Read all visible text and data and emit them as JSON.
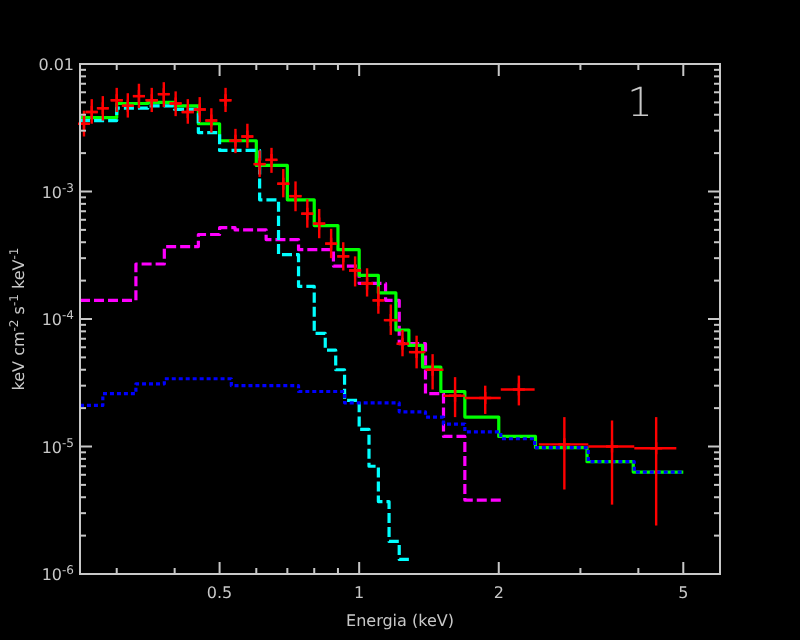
{
  "chart_data": {
    "type": "step",
    "xlabel": "Energia (keV)",
    "ylabel": "keV cm$^{-2}$ s$^{-1}$ keV$^{-1}$",
    "annotations": [
      "1"
    ],
    "log": "xy",
    "grid": false,
    "xlim": [
      0.25,
      6
    ],
    "ylim": [
      1e-06,
      0.01
    ],
    "xticks": [
      {
        "value": 0.3,
        "label": null
      },
      {
        "value": 0.4,
        "label": null
      },
      0.5,
      {
        "value": 0.6,
        "label": null
      },
      {
        "value": 0.7,
        "label": null
      },
      {
        "value": 0.8,
        "label": null
      },
      {
        "value": 0.9,
        "label": null
      },
      1,
      2,
      {
        "value": 3,
        "label": null
      },
      {
        "value": 4,
        "label": null
      },
      5
    ],
    "yticks": [
      {
        "value": 1e-06,
        "label": "10$^{-6}$"
      },
      {
        "value": 2e-06,
        "label": null
      },
      {
        "value": 3e-06,
        "label": null
      },
      {
        "value": 4e-06,
        "label": null
      },
      {
        "value": 5e-06,
        "label": null
      },
      {
        "value": 6e-06,
        "label": null
      },
      {
        "value": 7e-06,
        "label": null
      },
      {
        "value": 8e-06,
        "label": null
      },
      {
        "value": 9e-06,
        "label": null
      },
      {
        "value": 1e-05,
        "label": "10$^{-5}$"
      },
      {
        "value": 2e-05,
        "label": null
      },
      {
        "value": 3e-05,
        "label": null
      },
      {
        "value": 4e-05,
        "label": null
      },
      {
        "value": 5e-05,
        "label": null
      },
      {
        "value": 6e-05,
        "label": null
      },
      {
        "value": 7e-05,
        "label": null
      },
      {
        "value": 8e-05,
        "label": null
      },
      {
        "value": 9e-05,
        "label": null
      },
      {
        "value": 0.0001,
        "label": "10$^{-4}$"
      },
      {
        "value": 0.0002,
        "label": null
      },
      {
        "value": 0.0003,
        "label": null
      },
      {
        "value": 0.0004,
        "label": null
      },
      {
        "value": 0.0005,
        "label": null
      },
      {
        "value": 0.0006,
        "label": null
      },
      {
        "value": 0.0007,
        "label": null
      },
      {
        "value": 0.0008,
        "label": null
      },
      {
        "value": 0.0009,
        "label": null
      },
      {
        "value": 0.001,
        "label": "10$^{-3}$"
      },
      {
        "value": 0.002,
        "label": null
      },
      {
        "value": 0.003,
        "label": null
      },
      {
        "value": 0.004,
        "label": null
      },
      {
        "value": 0.005,
        "label": null
      },
      {
        "value": 0.006,
        "label": null
      },
      {
        "value": 0.007,
        "label": null
      },
      {
        "value": 0.008,
        "label": null
      },
      {
        "value": 0.009,
        "label": null
      },
      0.01
    ],
    "series": [
      {
        "color": "#ff00ff",
        "line_style": "dashed",
        "x": [
          0.25,
          0.33,
          0.38,
          0.45,
          0.5,
          0.54,
          0.63,
          0.74,
          0.88,
          1.0,
          1.14,
          1.22,
          1.39,
          1.52,
          1.69,
          2.02
        ],
        "values": [
          0.00014,
          0.00027,
          0.00037,
          0.00046,
          0.00052,
          0.0005,
          0.00042,
          0.00035,
          0.00026,
          0.00019,
          0.00014,
          6.4e-05,
          2.6e-05,
          1.2e-05,
          3.8e-06,
          3.8e-06
        ]
      },
      {
        "color": "#0000ff",
        "line_style": "dotted",
        "x": [
          0.25,
          0.28,
          0.33,
          0.38,
          0.45,
          0.53,
          0.74,
          0.93,
          1.22,
          1.39,
          1.52,
          1.69,
          2.02,
          2.39,
          3.12,
          3.92,
          4.96
        ],
        "values": [
          2.1e-05,
          2.6e-05,
          3.1e-05,
          3.4e-05,
          3.4e-05,
          3e-05,
          2.7e-05,
          2.2e-05,
          1.87e-05,
          1.7e-05,
          1.5e-05,
          1.3e-05,
          1.15e-05,
          9.8e-06,
          7.6e-06,
          6.3e-06,
          6.3e-06
        ]
      },
      {
        "color": "#00ff00",
        "line_style": "solid",
        "x": [
          0.25,
          0.3,
          0.35,
          0.4,
          0.45,
          0.5,
          0.6,
          0.7,
          0.8,
          0.9,
          1.0,
          1.1,
          1.2,
          1.28,
          1.37,
          1.5,
          1.69,
          2.0,
          2.4,
          3.1,
          3.9,
          5.0
        ],
        "values": [
          0.0038,
          0.0049,
          0.005,
          0.0047,
          0.0034,
          0.0025,
          0.0016,
          0.00086,
          0.00054,
          0.00035,
          0.00022,
          0.00016,
          8.2e-05,
          6.2e-05,
          4.2e-05,
          2.7e-05,
          1.7e-05,
          1.2e-05,
          9.8e-06,
          7.6e-06,
          6.3e-06,
          6.3e-06
        ]
      },
      {
        "color": "#00ffff",
        "line_style": "dashed",
        "x": [
          0.25,
          0.3,
          0.35,
          0.4,
          0.45,
          0.5,
          0.61,
          0.67,
          0.74,
          0.8,
          0.845,
          0.89,
          0.93,
          1.0,
          1.05,
          1.1,
          1.16,
          1.22,
          1.28
        ],
        "values": [
          0.0036,
          0.0045,
          0.0047,
          0.0044,
          0.0029,
          0.0021,
          0.00086,
          0.00032,
          0.00018,
          7.7e-05,
          5.7e-05,
          4e-05,
          2.3e-05,
          1.36e-05,
          7e-06,
          3.7e-06,
          1.8e-06,
          1.3e-06,
          1.3e-06
        ]
      },
      {
        "type": "scatter",
        "color": "#ff0000",
        "marker": "cross",
        "x": [
          0.255,
          0.265,
          0.28,
          0.3,
          0.317,
          0.335,
          0.357,
          0.379,
          0.402,
          0.427,
          0.453,
          0.48,
          0.515,
          0.541,
          0.574,
          0.61,
          0.647,
          0.686,
          0.729,
          0.773,
          0.82,
          0.87,
          0.924,
          0.98,
          1.04,
          1.1,
          1.17,
          1.24,
          1.33,
          1.44,
          1.61,
          1.87,
          2.21,
          2.77,
          3.51,
          4.37
        ],
        "values": [
          0.0034,
          0.0042,
          0.0045,
          0.0052,
          0.0047,
          0.0056,
          0.0052,
          0.0058,
          0.0049,
          0.0042,
          0.0044,
          0.0036,
          0.0052,
          0.0025,
          0.0027,
          0.00164,
          0.00177,
          0.00115,
          0.00092,
          0.00067,
          0.00056,
          0.00039,
          0.00031,
          0.00024,
          0.00019,
          0.00014,
          9.8e-05,
          6.4e-05,
          5.5e-05,
          4e-05,
          2.5e-05,
          2.4e-05,
          2.8e-05,
          1.04e-05,
          1e-05,
          9.7e-06
        ],
        "errors": [
          [
            0.0027,
            0.0043
          ],
          [
            0.0034,
            0.0053
          ],
          [
            0.0036,
            0.0056
          ],
          [
            0.0042,
            0.0065
          ],
          [
            0.0038,
            0.0059
          ],
          [
            0.0045,
            0.007
          ],
          [
            0.0042,
            0.0065
          ],
          [
            0.0046,
            0.0072
          ],
          [
            0.0039,
            0.0061
          ],
          [
            0.0034,
            0.0053
          ],
          [
            0.0035,
            0.0055
          ],
          [
            0.0029,
            0.0045
          ],
          [
            0.0042,
            0.0065
          ],
          [
            0.002,
            0.0031
          ],
          [
            0.0022,
            0.0034
          ],
          [
            0.0013,
            0.0021
          ],
          [
            0.0014,
            0.0022
          ],
          [
            0.0009,
            0.0015
          ],
          [
            0.0007,
            0.0012
          ],
          [
            0.00052,
            0.00087
          ],
          [
            0.00043,
            0.00073
          ],
          [
            0.0003,
            0.00051
          ],
          [
            0.00024,
            0.0004
          ],
          [
            0.00018,
            0.00031
          ],
          [
            0.00015,
            0.00025
          ],
          [
            0.00011,
            0.00018
          ],
          [
            7.5e-05,
            0.00013
          ],
          [
            5.1e-05,
            8.2e-05
          ],
          [
            4.1e-05,
            7.4e-05
          ],
          [
            2.8e-05,
            5.3e-05
          ],
          [
            1.7e-05,
            3.5e-05
          ],
          [
            1.8e-05,
            3e-05
          ],
          [
            2.1e-05,
            3.6e-05
          ],
          [
            4.6e-06,
            1.7e-05
          ],
          [
            3.5e-06,
            1.6e-05
          ],
          [
            2.4e-06,
            1.7e-05
          ]
        ],
        "xerrors": [
          [
            0.251,
            0.26
          ],
          [
            0.257,
            0.273
          ],
          [
            0.273,
            0.288
          ],
          [
            0.291,
            0.309
          ],
          [
            0.308,
            0.326
          ],
          [
            0.325,
            0.345
          ],
          [
            0.346,
            0.368
          ],
          [
            0.368,
            0.39
          ],
          [
            0.39,
            0.414
          ],
          [
            0.414,
            0.44
          ],
          [
            0.44,
            0.467
          ],
          [
            0.466,
            0.494
          ],
          [
            0.5,
            0.53
          ],
          [
            0.525,
            0.557
          ],
          [
            0.557,
            0.591
          ],
          [
            0.592,
            0.628
          ],
          [
            0.628,
            0.666
          ],
          [
            0.666,
            0.707
          ],
          [
            0.707,
            0.751
          ],
          [
            0.75,
            0.796
          ],
          [
            0.796,
            0.845
          ],
          [
            0.845,
            0.896
          ],
          [
            0.897,
            0.952
          ],
          [
            0.951,
            1.01
          ],
          [
            1.01,
            1.07
          ],
          [
            1.07,
            1.13
          ],
          [
            1.13,
            1.21
          ],
          [
            1.22,
            1.28
          ],
          [
            1.28,
            1.39
          ],
          [
            1.39,
            1.52
          ],
          [
            1.52,
            1.69
          ],
          [
            1.69,
            2.02
          ],
          [
            2.02,
            2.39
          ],
          [
            2.44,
            3.12
          ],
          [
            3.12,
            3.92
          ],
          [
            3.92,
            4.83
          ]
        ]
      }
    ]
  }
}
